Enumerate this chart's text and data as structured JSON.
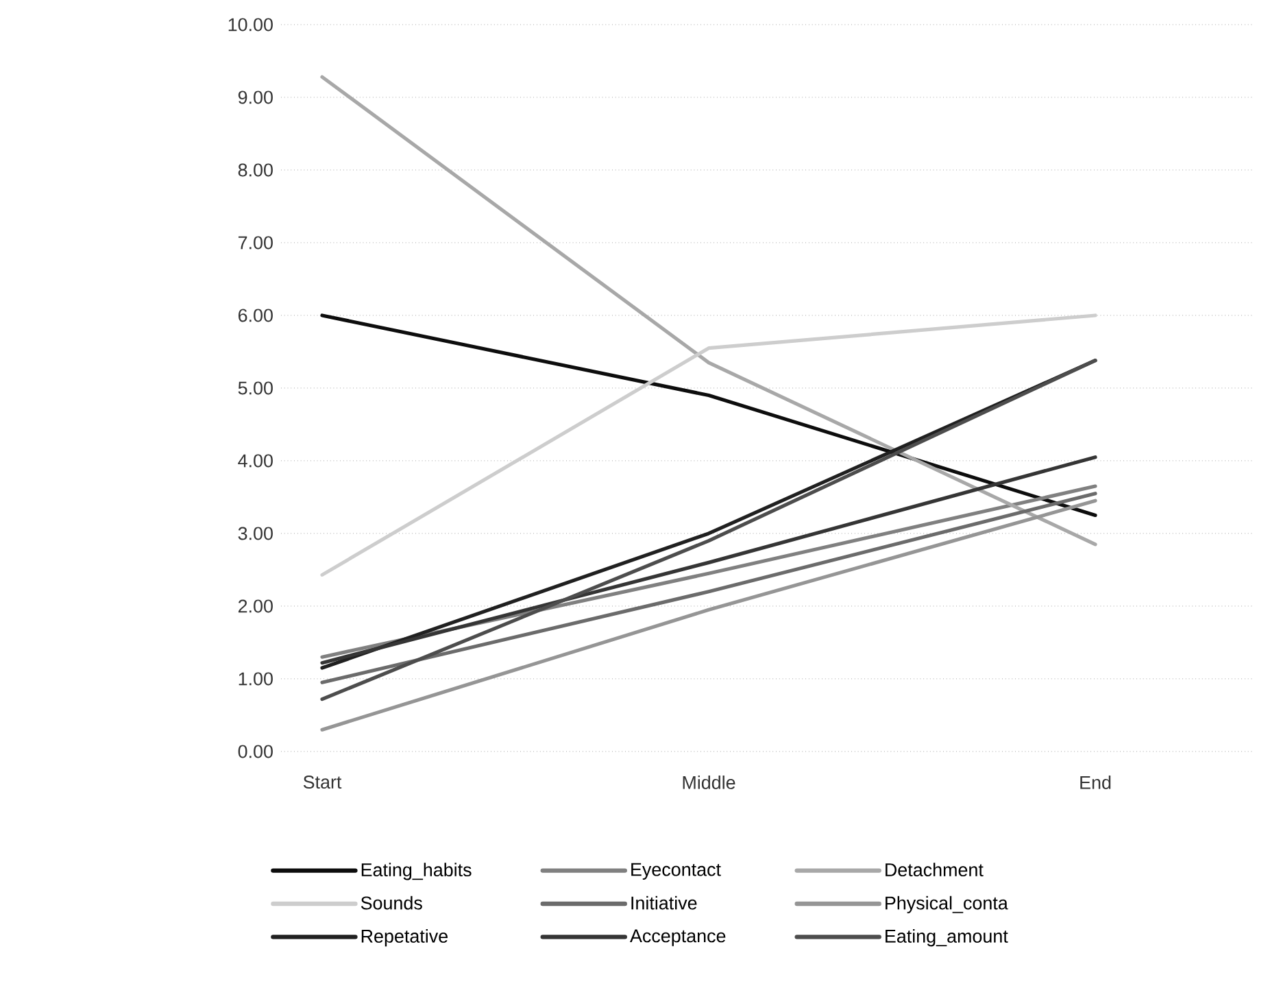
{
  "chart_data": {
    "type": "line",
    "categories": [
      "Start",
      "Middle",
      "End"
    ],
    "series": [
      {
        "name": "Eating_habits",
        "color": "#0d0d0d",
        "values": [
          6.0,
          4.9,
          3.25
        ]
      },
      {
        "name": "Eyecontact",
        "color": "#808080",
        "values": [
          1.3,
          2.45,
          3.65
        ]
      },
      {
        "name": "Detachment",
        "color": "#a8a8a8",
        "values": [
          9.28,
          5.35,
          2.85
        ]
      },
      {
        "name": "Sounds",
        "color": "#cdcdcd",
        "values": [
          2.43,
          5.55,
          6.0
        ]
      },
      {
        "name": "Initiative",
        "color": "#6b6b6b",
        "values": [
          0.95,
          2.2,
          3.55
        ]
      },
      {
        "name": "Physical_conta",
        "color": "#959595",
        "values": [
          0.3,
          1.95,
          3.45
        ]
      },
      {
        "name": "Repetative",
        "color": "#202020",
        "values": [
          1.15,
          3.0,
          5.38
        ]
      },
      {
        "name": "Acceptance",
        "color": "#353535",
        "values": [
          1.22,
          2.6,
          4.05
        ]
      },
      {
        "name": "Eating_amount",
        "color": "#4d4d4d",
        "values": [
          0.72,
          2.9,
          5.38
        ]
      }
    ],
    "ylim": [
      0,
      10
    ],
    "yticks": [
      {
        "value": 0,
        "label": "0.00"
      },
      {
        "value": 1,
        "label": "1.00"
      },
      {
        "value": 2,
        "label": "2.00"
      },
      {
        "value": 3,
        "label": "3.00"
      },
      {
        "value": 4,
        "label": "4.00"
      },
      {
        "value": 5,
        "label": "5.00"
      },
      {
        "value": 6,
        "label": "6.00"
      },
      {
        "value": 7,
        "label": "7.00"
      },
      {
        "value": 8,
        "label": "8.00"
      },
      {
        "value": 9,
        "label": "9.00"
      },
      {
        "value": 10,
        "label": "10.00"
      }
    ],
    "grid": "y",
    "legend": "bottom",
    "marker": "none",
    "line_style": "solid"
  }
}
